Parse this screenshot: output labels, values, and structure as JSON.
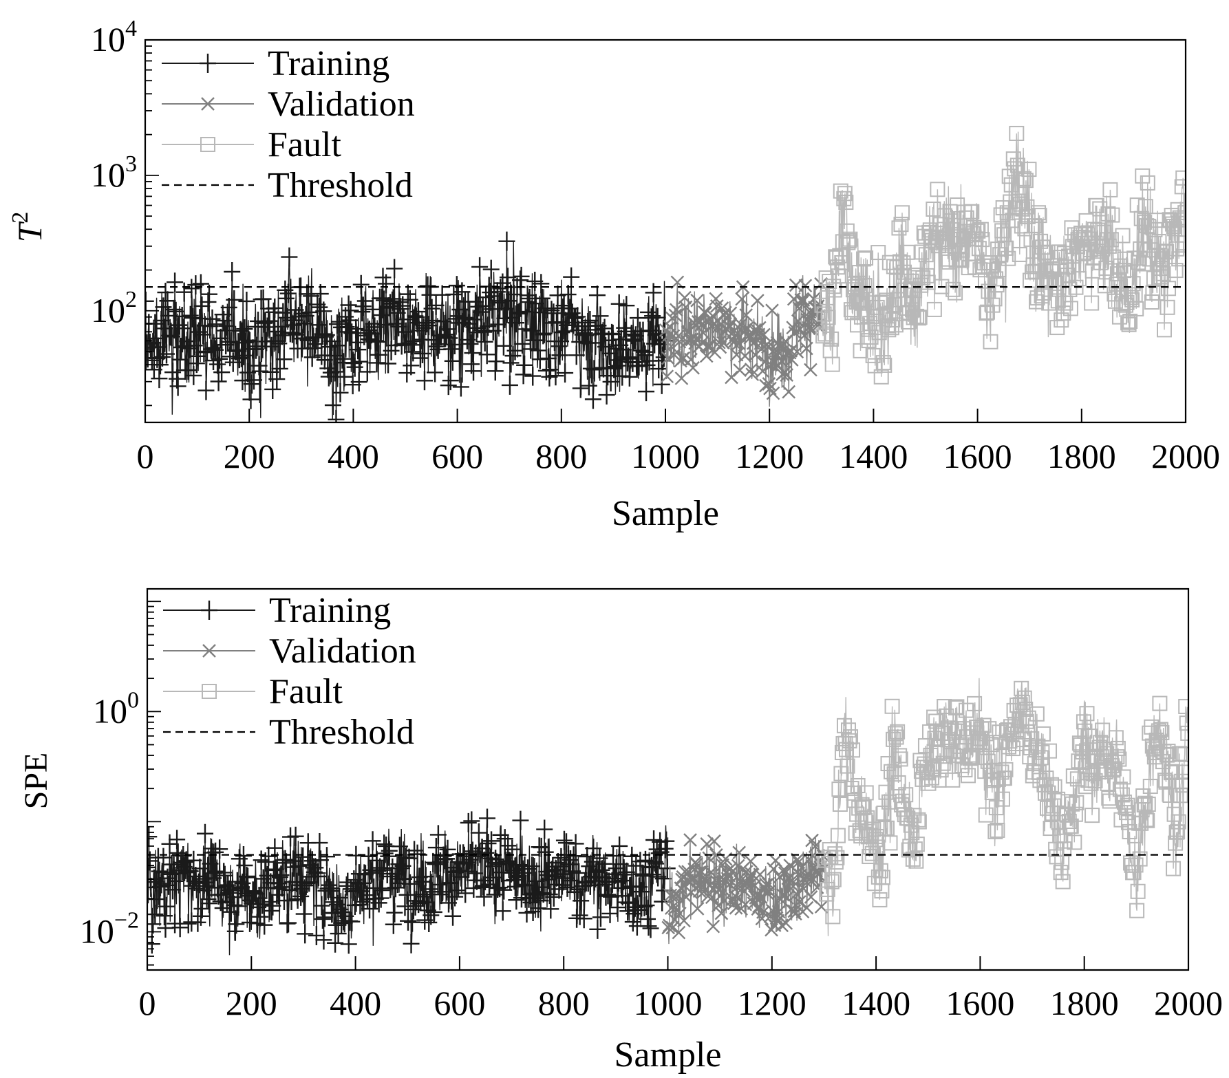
{
  "chart_data": [
    {
      "type": "scatter",
      "title": "",
      "xlabel": "Sample",
      "ylabel": "T",
      "ylabel_sup": "2",
      "yscale": "log",
      "xlim": [
        0,
        2000
      ],
      "ylim": [
        15,
        10000
      ],
      "xticks": [
        "0",
        "200",
        "400",
        "600",
        "800",
        "1000",
        "1200",
        "1400",
        "1600",
        "1800",
        "2000"
      ],
      "yticks": [
        {
          "value": 100,
          "base": "10",
          "exp": "2"
        },
        {
          "value": 1000,
          "base": "10",
          "exp": "3"
        },
        {
          "value": 10000,
          "base": "10",
          "exp": "4"
        }
      ],
      "threshold": 150,
      "legend_position": "top-left",
      "legend": [
        "Training",
        "Validation",
        "Fault",
        "Threshold"
      ],
      "series": [
        {
          "name": "Training",
          "x_range": [
            1,
            1000
          ],
          "marker": "plus",
          "color": "#1a1a1a",
          "profile": [
            [
              0,
              55
            ],
            [
              50,
              72
            ],
            [
              150,
              62
            ],
            [
              220,
              50
            ],
            [
              280,
              95
            ],
            [
              330,
              70
            ],
            [
              370,
              45
            ],
            [
              430,
              92
            ],
            [
              520,
              78
            ],
            [
              600,
              72
            ],
            [
              690,
              95
            ],
            [
              760,
              78
            ],
            [
              820,
              72
            ],
            [
              880,
              55
            ],
            [
              940,
              50
            ],
            [
              1000,
              78
            ]
          ]
        },
        {
          "name": "Validation",
          "x_range": [
            1001,
            1300
          ],
          "marker": "x",
          "color": "#808080",
          "profile": [
            [
              1000,
              40
            ],
            [
              1020,
              70
            ],
            [
              1080,
              82
            ],
            [
              1130,
              72
            ],
            [
              1180,
              58
            ],
            [
              1230,
              52
            ],
            [
              1260,
              85
            ],
            [
              1300,
              100
            ]
          ]
        },
        {
          "name": "Fault",
          "x_range": [
            1301,
            2000
          ],
          "marker": "square",
          "color": "#b8b8b8",
          "profile": [
            [
              1300,
              80
            ],
            [
              1320,
              55
            ],
            [
              1340,
              500
            ],
            [
              1355,
              200
            ],
            [
              1390,
              90
            ],
            [
              1420,
              80
            ],
            [
              1450,
              250
            ],
            [
              1480,
              90
            ],
            [
              1520,
              450
            ],
            [
              1560,
              280
            ],
            [
              1590,
              400
            ],
            [
              1620,
              140
            ],
            [
              1640,
              300
            ],
            [
              1680,
              900
            ],
            [
              1710,
              300
            ],
            [
              1750,
              140
            ],
            [
              1800,
              350
            ],
            [
              1850,
              300
            ],
            [
              1890,
              120
            ],
            [
              1920,
              400
            ],
            [
              1960,
              180
            ],
            [
              2000,
              700
            ]
          ]
        }
      ]
    },
    {
      "type": "scatter",
      "title": "",
      "xlabel": "Sample",
      "ylabel": "SPE",
      "yscale": "log",
      "xlim": [
        0,
        2000
      ],
      "ylim": [
        0.0045,
        13
      ],
      "xticks": [
        "0",
        "200",
        "400",
        "600",
        "800",
        "1000",
        "1200",
        "1400",
        "1600",
        "1800",
        "2000"
      ],
      "yticks": [
        {
          "value": 0.01,
          "base": "10",
          "exp": "−2"
        },
        {
          "value": 1,
          "base": "10",
          "exp": "0"
        }
      ],
      "threshold": 0.05,
      "legend_position": "top-left",
      "legend": [
        "Training",
        "Validation",
        "Fault",
        "Threshold"
      ],
      "series": [
        {
          "name": "Training",
          "x_range": [
            1,
            1000
          ],
          "marker": "plus",
          "color": "#1a1a1a",
          "profile": [
            [
              0,
              0.02
            ],
            [
              60,
              0.032
            ],
            [
              150,
              0.025
            ],
            [
              220,
              0.022
            ],
            [
              280,
              0.035
            ],
            [
              350,
              0.025
            ],
            [
              370,
              0.018
            ],
            [
              450,
              0.035
            ],
            [
              550,
              0.03
            ],
            [
              650,
              0.035
            ],
            [
              750,
              0.032
            ],
            [
              850,
              0.03
            ],
            [
              950,
              0.026
            ],
            [
              1000,
              0.04
            ]
          ]
        },
        {
          "name": "Validation",
          "x_range": [
            1001,
            1300
          ],
          "marker": "x",
          "color": "#808080",
          "profile": [
            [
              1000,
              0.012
            ],
            [
              1020,
              0.025
            ],
            [
              1080,
              0.032
            ],
            [
              1140,
              0.025
            ],
            [
              1190,
              0.02
            ],
            [
              1240,
              0.022
            ],
            [
              1300,
              0.04
            ]
          ]
        },
        {
          "name": "Fault",
          "x_range": [
            1301,
            2000
          ],
          "marker": "square",
          "color": "#b8b8b8",
          "profile": [
            [
              1300,
              0.03
            ],
            [
              1320,
              0.025
            ],
            [
              1340,
              0.9
            ],
            [
              1360,
              0.15
            ],
            [
              1390,
              0.07
            ],
            [
              1410,
              0.06
            ],
            [
              1440,
              0.4
            ],
            [
              1470,
              0.08
            ],
            [
              1510,
              0.6
            ],
            [
              1560,
              0.5
            ],
            [
              1600,
              0.7
            ],
            [
              1630,
              0.15
            ],
            [
              1660,
              0.8
            ],
            [
              1680,
              1.3
            ],
            [
              1720,
              0.3
            ],
            [
              1760,
              0.06
            ],
            [
              1800,
              0.5
            ],
            [
              1860,
              0.45
            ],
            [
              1900,
              0.03
            ],
            [
              1940,
              0.6
            ],
            [
              1980,
              0.08
            ],
            [
              2000,
              1.0
            ]
          ]
        }
      ]
    }
  ]
}
